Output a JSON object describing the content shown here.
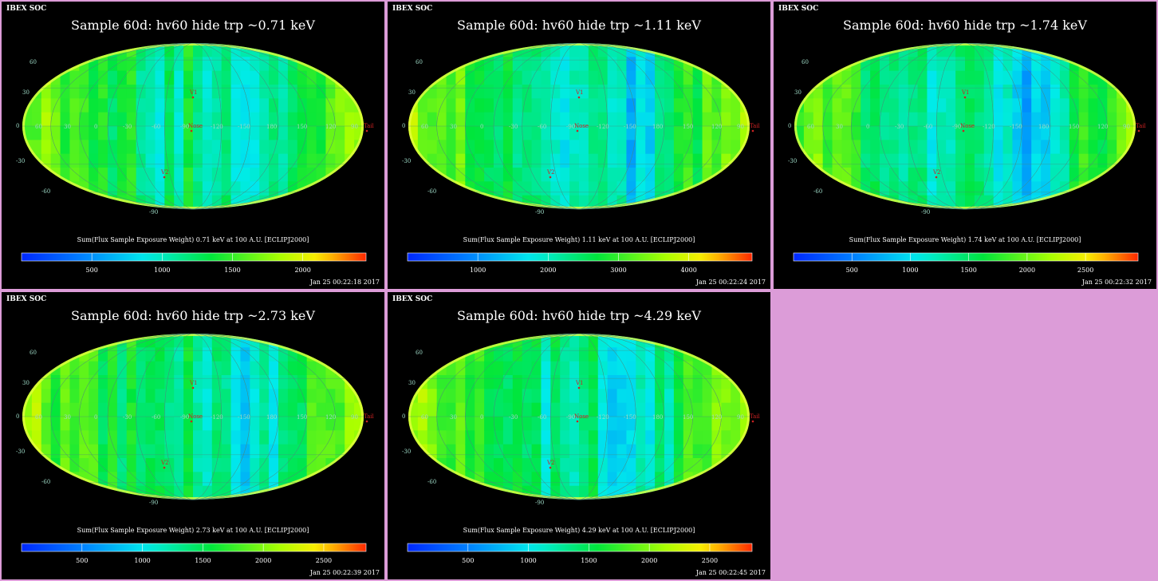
{
  "colors": {
    "background": "#dc9cd8",
    "panel_bg": "#000000",
    "marker": "#cc2222",
    "graticule": "#4a8a7a"
  },
  "chart_data": [
    {
      "type": "heatmap",
      "header": "IBEX SOC",
      "title": "Sample 60d: hv60 hide trp ~0.71 keV",
      "colorbar_label": "Sum(Flux Sample Exposure Weight)  0.71 keV at 100 A.U. [ECLIPJ2000]",
      "colorbar_ticks": [
        500,
        1000,
        1500,
        2000
      ],
      "colorbar_range": [
        0,
        2450
      ],
      "timestamp": "Jan 25 00:22:18 2017",
      "projection": "mollweide",
      "lat_labels": [
        "60",
        "30",
        "0",
        "-30",
        "-60",
        "-90"
      ],
      "lon_labels": [
        "60",
        "30",
        "0",
        "-30",
        "-60",
        "-90",
        "-120",
        "-150",
        "180",
        "150",
        "120",
        "90"
      ],
      "markers": [
        "V1",
        "Nose",
        "V2",
        "Tail"
      ],
      "level": 0.45
    },
    {
      "type": "heatmap",
      "header": "IBEX SOC",
      "title": "Sample 60d: hv60 hide trp ~1.11 keV",
      "colorbar_label": "Sum(Flux Sample Exposure Weight)  1.11 keV at 100 A.U. [ECLIPJ2000]",
      "colorbar_ticks": [
        1000,
        2000,
        3000,
        4000
      ],
      "colorbar_range": [
        0,
        4900
      ],
      "timestamp": "Jan 25 00:22:24 2017",
      "projection": "mollweide",
      "lat_labels": [
        "60",
        "30",
        "0",
        "-30",
        "-60",
        "-90"
      ],
      "lon_labels": [
        "60",
        "30",
        "0",
        "-30",
        "-60",
        "-90",
        "-120",
        "-150",
        "180",
        "150",
        "120",
        "90"
      ],
      "markers": [
        "V1",
        "Nose",
        "V2",
        "Tail"
      ],
      "level": 0.42
    },
    {
      "type": "heatmap",
      "header": "IBEX SOC",
      "title": "Sample 60d: hv60 hide trp ~1.74 keV",
      "colorbar_label": "Sum(Flux Sample Exposure Weight)  1.74 keV at 100 A.U. [ECLIPJ2000]",
      "colorbar_ticks": [
        500,
        1000,
        1500,
        2000,
        2500
      ],
      "colorbar_range": [
        0,
        2950
      ],
      "timestamp": "Jan 25 00:22:32 2017",
      "projection": "mollweide",
      "lat_labels": [
        "60",
        "30",
        "0",
        "-30",
        "-60",
        "-90"
      ],
      "lon_labels": [
        "60",
        "30",
        "0",
        "-30",
        "-60",
        "-90",
        "-120",
        "-150",
        "180",
        "150",
        "120",
        "90"
      ],
      "markers": [
        "V1",
        "Nose",
        "V2",
        "Tail"
      ],
      "level": 0.4
    },
    {
      "type": "heatmap",
      "header": "IBEX SOC",
      "title": "Sample 60d: hv60 hide trp ~2.73 keV",
      "colorbar_label": "Sum(Flux Sample Exposure Weight)  2.73 keV at 100 A.U. [ECLIPJ2000]",
      "colorbar_ticks": [
        500,
        1000,
        1500,
        2000,
        2500
      ],
      "colorbar_range": [
        0,
        2850
      ],
      "timestamp": "Jan 25 00:22:39 2017",
      "projection": "mollweide",
      "lat_labels": [
        "60",
        "30",
        "0",
        "-30",
        "-60",
        "-90"
      ],
      "lon_labels": [
        "60",
        "30",
        "0",
        "-30",
        "-60",
        "-90",
        "-120",
        "-150",
        "180",
        "150",
        "120",
        "90"
      ],
      "markers": [
        "V1",
        "Nose",
        "V2",
        "Tail"
      ],
      "level": 0.43
    },
    {
      "type": "heatmap",
      "header": "IBEX SOC",
      "title": "Sample 60d: hv60 hide trp ~4.29 keV",
      "colorbar_label": "Sum(Flux Sample Exposure Weight)  4.29 keV at 100 A.U. [ECLIPJ2000]",
      "colorbar_ticks": [
        500,
        1000,
        1500,
        2000,
        2500
      ],
      "colorbar_range": [
        0,
        2850
      ],
      "timestamp": "Jan 25 00:22:45 2017",
      "projection": "mollweide",
      "lat_labels": [
        "60",
        "30",
        "0",
        "-30",
        "-60",
        "-90"
      ],
      "lon_labels": [
        "60",
        "30",
        "0",
        "-30",
        "-60",
        "-90",
        "-120",
        "-150",
        "180",
        "150",
        "120",
        "90"
      ],
      "markers": [
        "V1",
        "Nose",
        "V2",
        "Tail"
      ],
      "level": 0.44
    }
  ]
}
